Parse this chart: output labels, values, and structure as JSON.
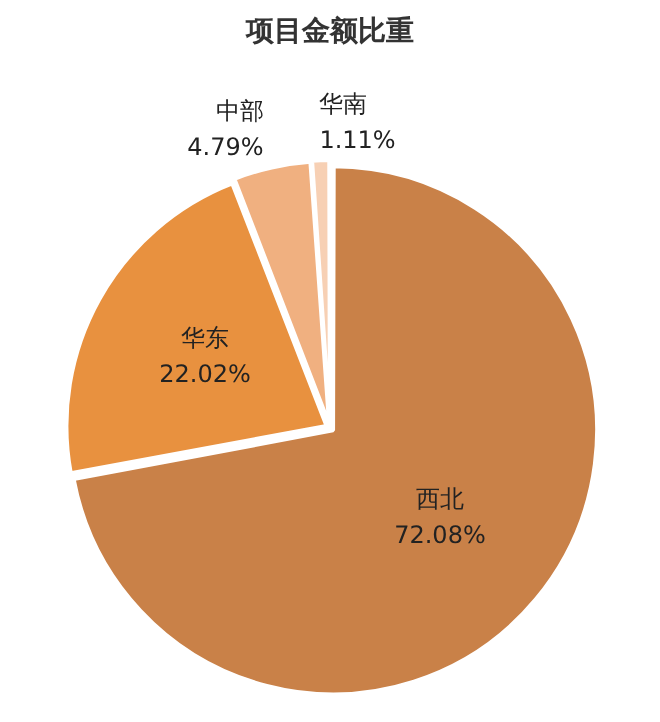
{
  "chart_data": {
    "type": "pie",
    "title": "项目金额比重",
    "categories": [
      "西北",
      "华东",
      "中部",
      "华南"
    ],
    "values": [
      72.08,
      22.02,
      4.79,
      1.11
    ],
    "value_labels": [
      "72.08%",
      "22.02%",
      "4.79%",
      "1.11%"
    ],
    "colors": [
      "#c98148",
      "#e8913f",
      "#f0b080",
      "#f7d0b4"
    ]
  }
}
